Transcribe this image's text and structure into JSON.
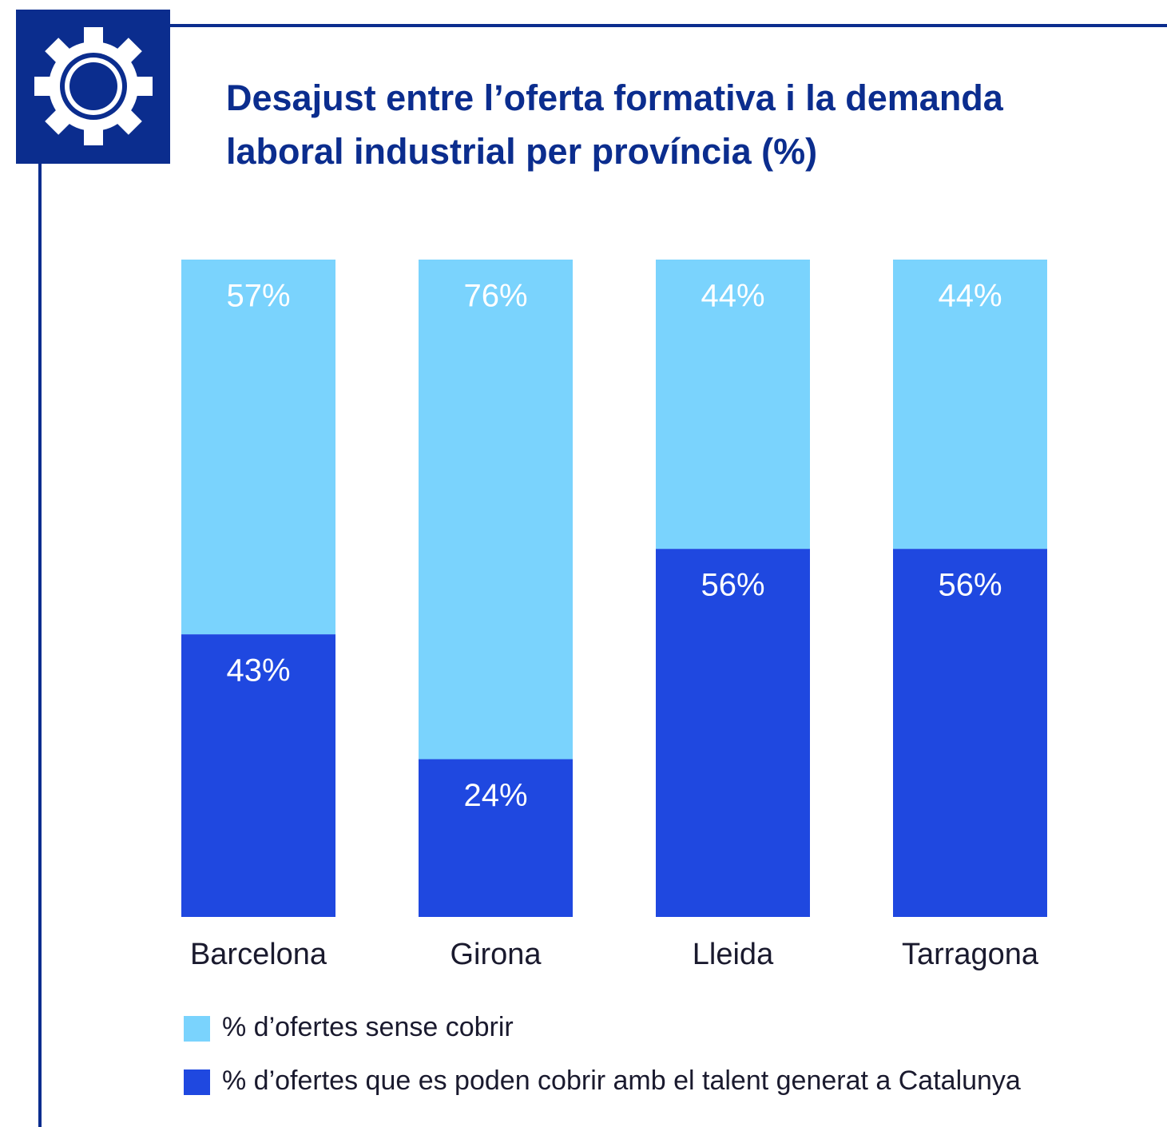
{
  "chart_data": {
    "type": "stacked-bar",
    "title": [
      "Desajust entre l’oferta formativa i la demanda",
      "laboral industrial per província (%)"
    ],
    "categories": [
      "Barcelona",
      "Girona",
      "Lleida",
      "Tarragona"
    ],
    "series": [
      {
        "name": "% d’ofertes sense cobrir",
        "color": "#7ad3fd",
        "values": [
          57,
          76,
          44,
          44
        ],
        "value_labels": [
          "57%",
          "76%",
          "44%",
          "44%"
        ]
      },
      {
        "name": "% d’ofertes que es poden cobrir amb el talent generat a Catalunya",
        "color": "#1f48e0",
        "values": [
          43,
          24,
          56,
          56
        ],
        "value_labels": [
          "43%",
          "24%",
          "56%",
          "56%"
        ]
      }
    ]
  }
}
